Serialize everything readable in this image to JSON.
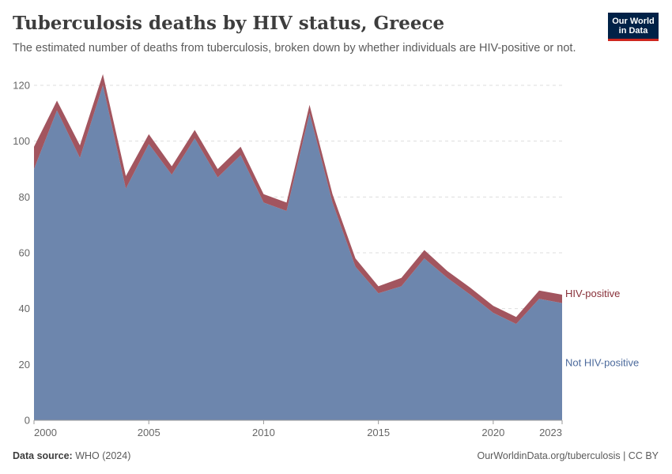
{
  "header": {
    "title": "Tuberculosis deaths by HIV status, Greece",
    "subtitle": "The estimated number of deaths from tuberculosis, broken down by whether individuals are HIV-positive or not."
  },
  "logo": {
    "line1": "Our World",
    "line2": "in Data"
  },
  "footer": {
    "source_label": "Data source:",
    "source_value": "WHO (2024)",
    "credit": "OurWorldinData.org/tuberculosis | CC BY"
  },
  "colors": {
    "not_hiv_positive": "#6d86ad",
    "hiv_positive": "#a2555f",
    "label_not_hiv": "#4c6a9c",
    "label_hiv": "#883039",
    "grid": "#dddddd"
  },
  "chart_data": {
    "type": "area",
    "stacked": true,
    "title": "Tuberculosis deaths by HIV status, Greece",
    "xlabel": "",
    "ylabel": "",
    "xlim": [
      2000,
      2023
    ],
    "ylim": [
      0,
      120
    ],
    "x": [
      2000,
      2001,
      2002,
      2003,
      2004,
      2005,
      2006,
      2007,
      2008,
      2009,
      2010,
      2011,
      2012,
      2013,
      2014,
      2015,
      2016,
      2017,
      2018,
      2019,
      2020,
      2021,
      2022,
      2023
    ],
    "xticks": [
      "2000",
      "2005",
      "2010",
      "2015",
      "2020",
      "2023"
    ],
    "yticks": [
      "0",
      "20",
      "40",
      "60",
      "80",
      "100",
      "120"
    ],
    "grid": "horizontal dashed",
    "series": [
      {
        "name": "Not HIV-positive",
        "values": [
          90,
          111,
          94,
          120,
          83,
          99,
          88,
          101,
          87,
          95,
          78,
          75,
          110,
          78,
          55,
          45.5,
          48,
          58,
          51,
          45,
          38.5,
          34.5,
          43.5,
          42
        ]
      },
      {
        "name": "HIV-positive",
        "values": [
          8,
          3.5,
          4.5,
          4,
          4.5,
          3.5,
          3,
          3,
          3,
          3,
          3,
          3,
          3,
          3,
          3,
          2.5,
          3,
          3,
          2.5,
          2.5,
          2.5,
          2.5,
          3,
          3
        ]
      }
    ]
  }
}
